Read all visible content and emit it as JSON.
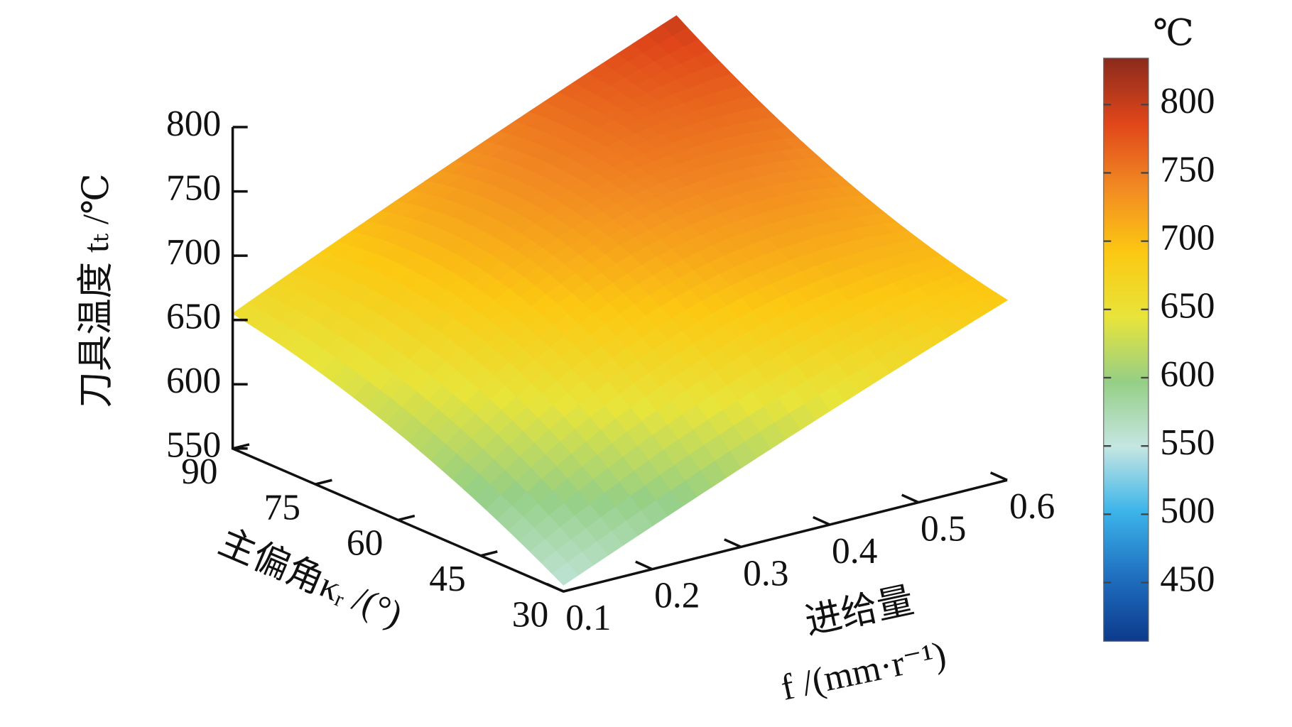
{
  "chart_data": {
    "type": "surface",
    "zlabel": "刀具温度 tₜ /℃",
    "ylabel": "主偏角κᵣ /(°)",
    "xlabel": [
      "进给量",
      "f /(mm·r⁻¹)"
    ],
    "x": [
      0.1,
      0.35,
      0.6
    ],
    "y": [
      30,
      60,
      90
    ],
    "z": [
      [
        555,
        625,
        690
      ],
      [
        618,
        720,
        730
      ],
      [
        655,
        730,
        800
      ]
    ],
    "xlim": [
      0.1,
      0.6
    ],
    "xticks": [
      0.1,
      0.2,
      0.3,
      0.4,
      0.5,
      0.6
    ],
    "ylim": [
      30,
      90
    ],
    "yticks": [
      30,
      45,
      60,
      75,
      90
    ],
    "zlim": [
      550,
      800
    ],
    "zticks": [
      550,
      600,
      650,
      700,
      750,
      800
    ],
    "colorbar": {
      "label": "℃",
      "clim": [
        407,
        834
      ],
      "ticks": [
        450,
        500,
        550,
        600,
        650,
        700,
        750,
        800
      ],
      "colormap": [
        "#0d3a8c",
        "#1f6fc0",
        "#3cb4ea",
        "#c5e6e2",
        "#95cf86",
        "#e8e43a",
        "#fcc812",
        "#f28a22",
        "#e0461a",
        "#8a2a1c"
      ]
    }
  }
}
